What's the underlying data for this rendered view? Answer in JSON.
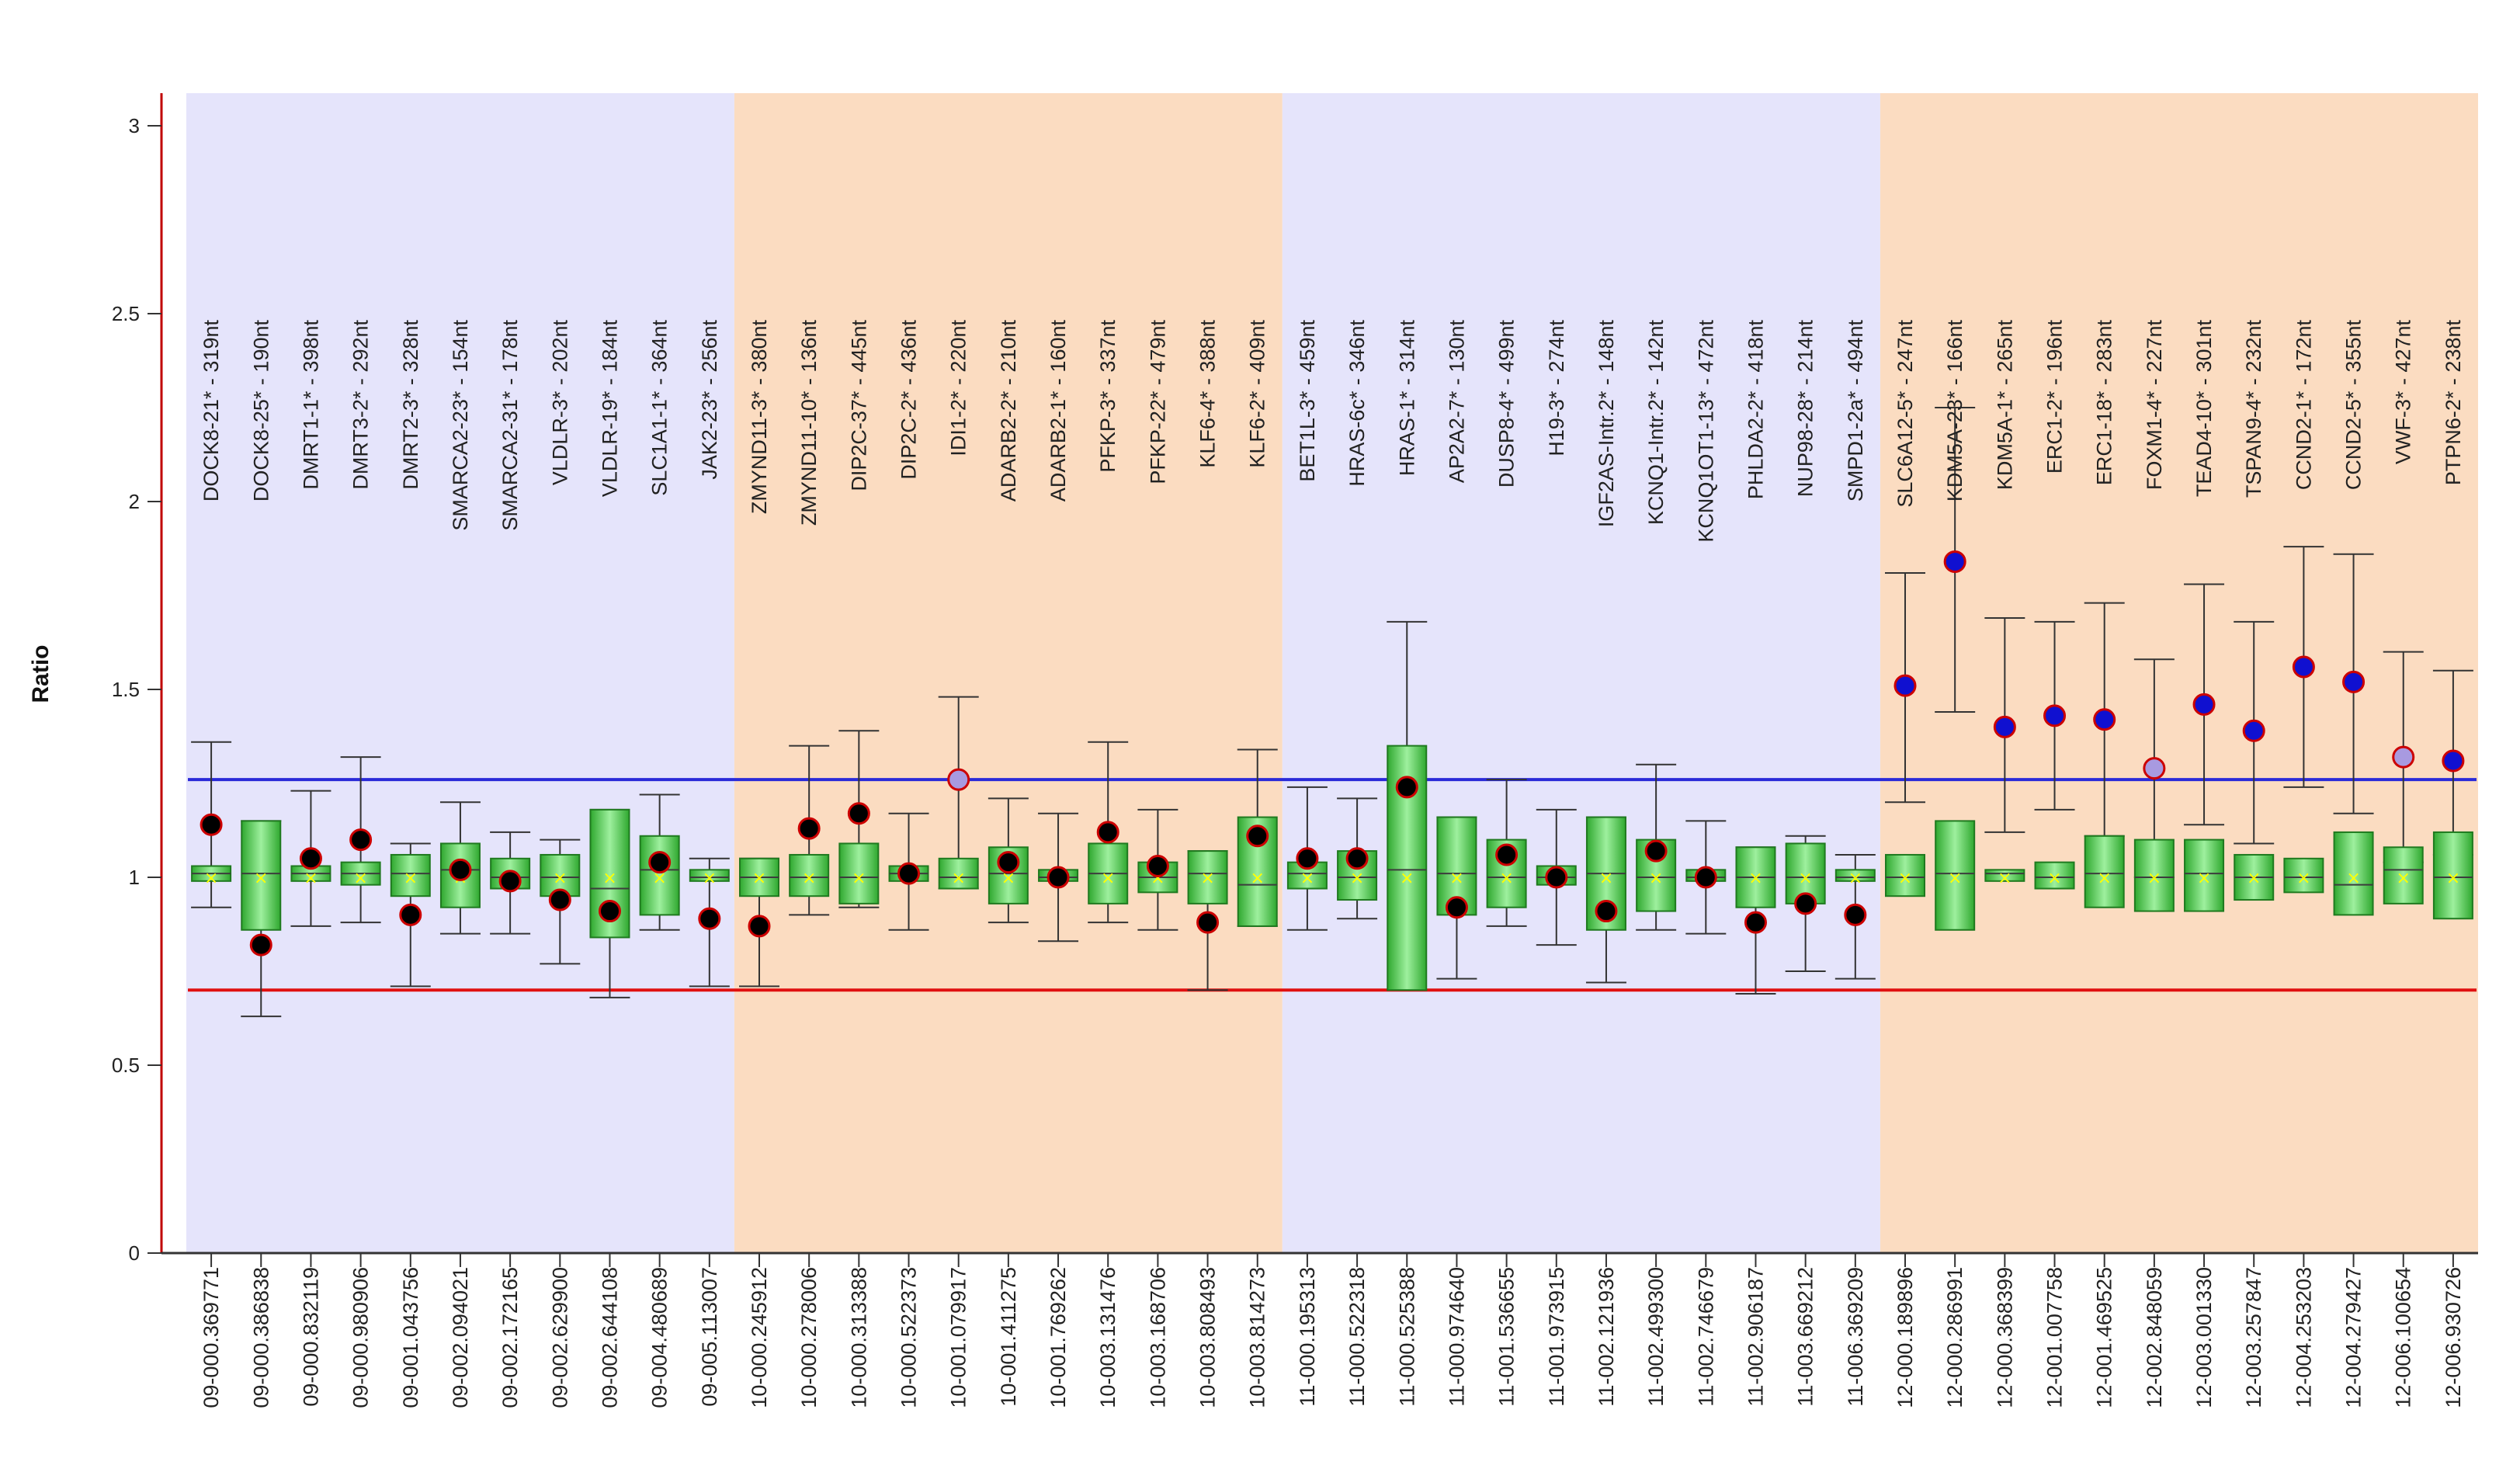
{
  "chart_data": {
    "type": "box",
    "ylabel": "Ratio",
    "xlabel": "",
    "ylim": [
      0,
      3.1
    ],
    "yticks": [
      {
        "v": 0,
        "label": "0"
      },
      {
        "v": 0.5,
        "label": "0.5"
      },
      {
        "v": 1,
        "label": "1"
      },
      {
        "v": 1.5,
        "label": "1.5"
      },
      {
        "v": 2,
        "label": "2"
      },
      {
        "v": 2.5,
        "label": "2.5"
      },
      {
        "v": 3,
        "label": "3"
      }
    ],
    "upper_threshold": 1.26,
    "lower_threshold": 0.7,
    "colors": {
      "band_odd": "#e5e4fb",
      "band_even": "#fbdcc1",
      "box_fill": "#4cc24c",
      "box_stroke": "#1f7a1f",
      "median": "#3c3c3c",
      "mean_marker": "#ffff00",
      "whisker": "#333333",
      "point_normal": "#000000",
      "point_gain": "#1010d0",
      "point_borderline": "#a89ae0",
      "point_edge": "#cc0000",
      "upper_line": "#2a2ad8",
      "lower_line": "#e01010",
      "axis_line": "#c00000"
    },
    "bands": [
      {
        "chromosome": "09",
        "start": 0,
        "end": 11
      },
      {
        "chromosome": "10",
        "start": 11,
        "end": 22
      },
      {
        "chromosome": "11",
        "start": 22,
        "end": 34
      },
      {
        "chromosome": "12",
        "start": 34,
        "end": 46
      }
    ],
    "probes": [
      {
        "label": "DOCK8-21* - 319nt",
        "position": "09-000.369771",
        "ratio": 1.14,
        "box": [
          0.99,
          1.01,
          1.03
        ],
        "whisker": [
          0.92,
          1.36
        ],
        "status": "normal"
      },
      {
        "label": "DOCK8-25* - 190nt",
        "position": "09-000.386838",
        "ratio": 0.82,
        "box": [
          0.86,
          1.01,
          1.15
        ],
        "whisker": [
          0.63,
          1.15
        ],
        "status": "normal"
      },
      {
        "label": "DMRT1-1* - 398nt",
        "position": "09-000.832119",
        "ratio": 1.05,
        "box": [
          0.99,
          1.01,
          1.03
        ],
        "whisker": [
          0.87,
          1.23
        ],
        "status": "normal"
      },
      {
        "label": "DMRT3-2* - 292nt",
        "position": "09-000.980906",
        "ratio": 1.1,
        "box": [
          0.98,
          1.01,
          1.04
        ],
        "whisker": [
          0.88,
          1.32
        ],
        "status": "normal"
      },
      {
        "label": "DMRT2-3* - 328nt",
        "position": "09-001.043756",
        "ratio": 0.9,
        "box": [
          0.95,
          1.01,
          1.06
        ],
        "whisker": [
          0.71,
          1.09
        ],
        "status": "normal"
      },
      {
        "label": "SMARCA2-23* - 154nt",
        "position": "09-002.094021",
        "ratio": 1.02,
        "box": [
          0.92,
          1.02,
          1.09
        ],
        "whisker": [
          0.85,
          1.2
        ],
        "status": "normal"
      },
      {
        "label": "SMARCA2-31* - 178nt",
        "position": "09-002.172165",
        "ratio": 0.99,
        "box": [
          0.97,
          1.0,
          1.05
        ],
        "whisker": [
          0.85,
          1.12
        ],
        "status": "normal"
      },
      {
        "label": "VLDLR-3* - 202nt",
        "position": "09-002.629900",
        "ratio": 0.94,
        "box": [
          0.95,
          1.0,
          1.06
        ],
        "whisker": [
          0.77,
          1.1
        ],
        "status": "normal"
      },
      {
        "label": "VLDLR-19* - 184nt",
        "position": "09-002.644108",
        "ratio": 0.91,
        "box": [
          0.84,
          0.97,
          1.18
        ],
        "whisker": [
          0.68,
          1.18
        ],
        "status": "normal"
      },
      {
        "label": "SLC1A1-1* - 364nt",
        "position": "09-004.480689",
        "ratio": 1.04,
        "box": [
          0.9,
          1.02,
          1.11
        ],
        "whisker": [
          0.86,
          1.22
        ],
        "status": "normal"
      },
      {
        "label": "JAK2-23* - 256nt",
        "position": "09-005.113007",
        "ratio": 0.89,
        "box": [
          0.99,
          1.0,
          1.02
        ],
        "whisker": [
          0.71,
          1.05
        ],
        "status": "normal"
      },
      {
        "label": "ZMYND11-3* - 380nt",
        "position": "10-000.245912",
        "ratio": 0.87,
        "box": [
          0.95,
          1.0,
          1.05
        ],
        "whisker": [
          0.71,
          1.05
        ],
        "status": "normal"
      },
      {
        "label": "ZMYND11-10* - 136nt",
        "position": "10-000.278006",
        "ratio": 1.13,
        "box": [
          0.95,
          1.0,
          1.06
        ],
        "whisker": [
          0.9,
          1.35
        ],
        "status": "normal"
      },
      {
        "label": "DIP2C-37* - 445nt",
        "position": "10-000.313388",
        "ratio": 1.17,
        "box": [
          0.93,
          1.0,
          1.09
        ],
        "whisker": [
          0.92,
          1.39
        ],
        "status": "normal"
      },
      {
        "label": "DIP2C-2* - 436nt",
        "position": "10-000.522373",
        "ratio": 1.01,
        "box": [
          0.99,
          1.01,
          1.03
        ],
        "whisker": [
          0.86,
          1.17
        ],
        "status": "normal"
      },
      {
        "label": "IDI1-2* - 220nt",
        "position": "10-001.079917",
        "ratio": 1.26,
        "box": [
          0.97,
          1.0,
          1.05
        ],
        "whisker": [
          0.97,
          1.48
        ],
        "status": "borderline"
      },
      {
        "label": "ADARB2-2* - 210nt",
        "position": "10-001.411275",
        "ratio": 1.04,
        "box": [
          0.93,
          1.01,
          1.08
        ],
        "whisker": [
          0.88,
          1.21
        ],
        "status": "normal"
      },
      {
        "label": "ADARB2-1* - 160nt",
        "position": "10-001.769262",
        "ratio": 1.0,
        "box": [
          0.99,
          1.0,
          1.02
        ],
        "whisker": [
          0.83,
          1.17
        ],
        "status": "normal"
      },
      {
        "label": "PFKP-3* - 337nt",
        "position": "10-003.131476",
        "ratio": 1.12,
        "box": [
          0.93,
          1.01,
          1.09
        ],
        "whisker": [
          0.88,
          1.36
        ],
        "status": "normal"
      },
      {
        "label": "PFKP-22* - 479nt",
        "position": "10-003.168706",
        "ratio": 1.03,
        "box": [
          0.96,
          1.0,
          1.04
        ],
        "whisker": [
          0.86,
          1.18
        ],
        "status": "normal"
      },
      {
        "label": "KLF6-4* - 388nt",
        "position": "10-003.808493",
        "ratio": 0.88,
        "box": [
          0.93,
          1.01,
          1.07
        ],
        "whisker": [
          0.7,
          1.07
        ],
        "status": "normal"
      },
      {
        "label": "KLF6-2* - 409nt",
        "position": "10-003.814273",
        "ratio": 1.11,
        "box": [
          0.87,
          0.98,
          1.16
        ],
        "whisker": [
          0.87,
          1.34
        ],
        "status": "normal"
      },
      {
        "label": "BET1L-3* - 459nt",
        "position": "11-000.195313",
        "ratio": 1.05,
        "box": [
          0.97,
          1.01,
          1.04
        ],
        "whisker": [
          0.86,
          1.24
        ],
        "status": "normal"
      },
      {
        "label": "HRAS-6c* - 346nt",
        "position": "11-000.522318",
        "ratio": 1.05,
        "box": [
          0.94,
          1.0,
          1.07
        ],
        "whisker": [
          0.89,
          1.21
        ],
        "status": "normal"
      },
      {
        "label": "HRAS-1* - 314nt",
        "position": "11-000.525388",
        "ratio": 1.24,
        "box": [
          0.7,
          1.02,
          1.35
        ],
        "whisker": [
          0.7,
          1.68
        ],
        "status": "normal"
      },
      {
        "label": "AP2A2-7* - 130nt",
        "position": "11-000.974640",
        "ratio": 0.92,
        "box": [
          0.9,
          1.01,
          1.16
        ],
        "whisker": [
          0.73,
          1.16
        ],
        "status": "normal"
      },
      {
        "label": "DUSP8-4* - 499nt",
        "position": "11-001.536655",
        "ratio": 1.06,
        "box": [
          0.92,
          1.0,
          1.1
        ],
        "whisker": [
          0.87,
          1.26
        ],
        "status": "normal"
      },
      {
        "label": "H19-3* - 274nt",
        "position": "11-001.973915",
        "ratio": 1.0,
        "box": [
          0.98,
          1.0,
          1.03
        ],
        "whisker": [
          0.82,
          1.18
        ],
        "status": "normal"
      },
      {
        "label": "IGF2AS-Intr.2* - 148nt",
        "position": "11-002.121936",
        "ratio": 0.91,
        "box": [
          0.86,
          1.01,
          1.16
        ],
        "whisker": [
          0.72,
          1.16
        ],
        "status": "normal"
      },
      {
        "label": "KCNQ1-Intr.2* - 142nt",
        "position": "11-002.499300",
        "ratio": 1.07,
        "box": [
          0.91,
          1.0,
          1.1
        ],
        "whisker": [
          0.86,
          1.3
        ],
        "status": "normal"
      },
      {
        "label": "KCNQ1OT1-13* - 472nt",
        "position": "11-002.746679",
        "ratio": 1.0,
        "box": [
          0.99,
          1.0,
          1.02
        ],
        "whisker": [
          0.85,
          1.15
        ],
        "status": "normal"
      },
      {
        "label": "PHLDA2-2* - 418nt",
        "position": "11-002.906187",
        "ratio": 0.88,
        "box": [
          0.92,
          1.0,
          1.08
        ],
        "whisker": [
          0.69,
          1.08
        ],
        "status": "normal"
      },
      {
        "label": "NUP98-28* - 214nt",
        "position": "11-003.669212",
        "ratio": 0.93,
        "box": [
          0.93,
          1.0,
          1.09
        ],
        "whisker": [
          0.75,
          1.11
        ],
        "status": "normal"
      },
      {
        "label": "SMPD1-2a* - 494nt",
        "position": "11-006.369209",
        "ratio": 0.9,
        "box": [
          0.99,
          1.0,
          1.02
        ],
        "whisker": [
          0.73,
          1.06
        ],
        "status": "normal"
      },
      {
        "label": "SLC6A12-5* - 247nt",
        "position": "12-000.189896",
        "ratio": 1.51,
        "box": [
          0.95,
          1.0,
          1.06
        ],
        "whisker": [
          1.2,
          1.81
        ],
        "status": "gain"
      },
      {
        "label": "KDM5A-23* - 166nt",
        "position": "12-000.286991",
        "ratio": 1.84,
        "box": [
          0.86,
          1.01,
          1.15
        ],
        "whisker": [
          1.44,
          2.25
        ],
        "status": "gain"
      },
      {
        "label": "KDM5A-1* - 265nt",
        "position": "12-000.368399",
        "ratio": 1.4,
        "box": [
          0.99,
          1.01,
          1.02
        ],
        "whisker": [
          1.12,
          1.69
        ],
        "status": "gain"
      },
      {
        "label": "ERC1-2* - 196nt",
        "position": "12-001.007758",
        "ratio": 1.43,
        "box": [
          0.97,
          1.0,
          1.04
        ],
        "whisker": [
          1.18,
          1.68
        ],
        "status": "gain"
      },
      {
        "label": "ERC1-18* - 283nt",
        "position": "12-001.469525",
        "ratio": 1.42,
        "box": [
          0.92,
          1.01,
          1.11
        ],
        "whisker": [
          1.11,
          1.73
        ],
        "status": "gain"
      },
      {
        "label": "FOXM1-4* - 227nt",
        "position": "12-002.848059",
        "ratio": 1.29,
        "box": [
          0.91,
          1.0,
          1.1
        ],
        "whisker": [
          1.0,
          1.58
        ],
        "status": "borderline"
      },
      {
        "label": "TEAD4-10* - 301nt",
        "position": "12-003.001330",
        "ratio": 1.46,
        "box": [
          0.91,
          1.01,
          1.1
        ],
        "whisker": [
          1.14,
          1.78
        ],
        "status": "gain"
      },
      {
        "label": "TSPAN9-4* - 232nt",
        "position": "12-003.257847",
        "ratio": 1.39,
        "box": [
          0.94,
          1.0,
          1.06
        ],
        "whisker": [
          1.09,
          1.68
        ],
        "status": "gain"
      },
      {
        "label": "CCND2-1* - 172nt",
        "position": "12-004.253203",
        "ratio": 1.56,
        "box": [
          0.96,
          1.0,
          1.05
        ],
        "whisker": [
          1.24,
          1.88
        ],
        "status": "gain"
      },
      {
        "label": "CCND2-5* - 355nt",
        "position": "12-004.279427",
        "ratio": 1.52,
        "box": [
          0.9,
          0.98,
          1.12
        ],
        "whisker": [
          1.17,
          1.86
        ],
        "status": "gain"
      },
      {
        "label": "VWF-3* - 427nt",
        "position": "12-006.100654",
        "ratio": 1.32,
        "box": [
          0.93,
          1.02,
          1.08
        ],
        "whisker": [
          1.04,
          1.6
        ],
        "status": "borderline"
      },
      {
        "label": "PTPN6-2* - 238nt",
        "position": "12-006.930726",
        "ratio": 1.31,
        "box": [
          0.89,
          1.0,
          1.12
        ],
        "whisker": [
          1.06,
          1.55
        ],
        "status": "gain"
      }
    ]
  }
}
